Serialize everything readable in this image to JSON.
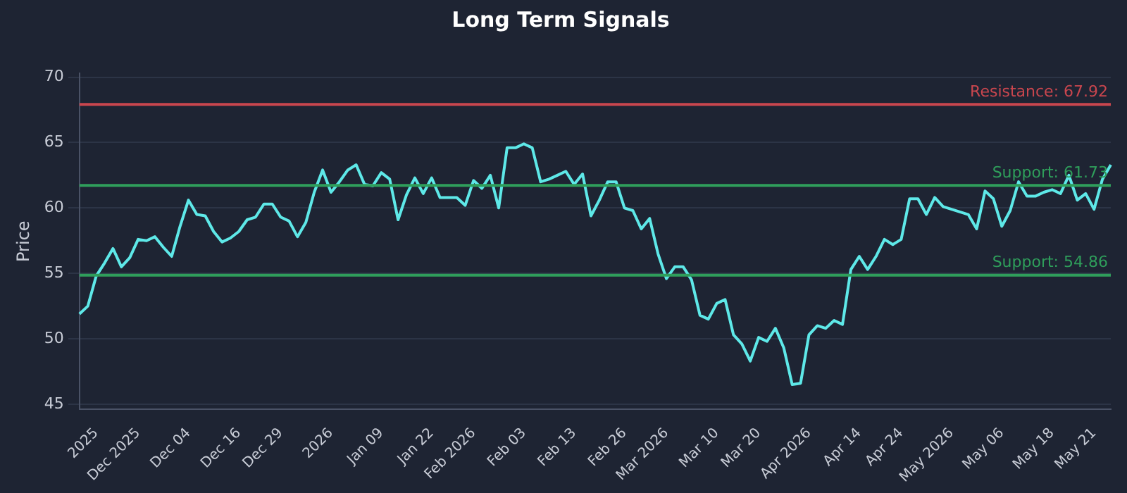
{
  "chart_data": {
    "type": "line",
    "title": "Long Term Signals",
    "ylabel": "Price",
    "categories": [
      null,
      null,
      "2025",
      null,
      null,
      null,
      null,
      "Dec 2025",
      null,
      null,
      null,
      null,
      null,
      "Dec 04",
      null,
      null,
      null,
      null,
      null,
      "Dec 16",
      null,
      null,
      null,
      null,
      "Dec 29",
      null,
      null,
      null,
      null,
      null,
      "2026",
      null,
      null,
      null,
      null,
      null,
      "Jan 09",
      null,
      null,
      null,
      null,
      null,
      "Jan 22",
      null,
      null,
      null,
      null,
      "Feb 2026",
      null,
      null,
      null,
      null,
      null,
      "Feb 03",
      null,
      null,
      null,
      null,
      null,
      "Feb 13",
      null,
      null,
      null,
      null,
      null,
      "Feb 26",
      null,
      null,
      null,
      null,
      "Mar 2026",
      null,
      null,
      null,
      null,
      null,
      "Mar 10",
      null,
      null,
      null,
      null,
      "Mar 20",
      null,
      null,
      null,
      null,
      null,
      "Apr 2026",
      null,
      null,
      null,
      null,
      null,
      "Apr 14",
      null,
      null,
      null,
      null,
      "Apr 24",
      null,
      null,
      null,
      null,
      null,
      "May 2026",
      null,
      null,
      null,
      null,
      null,
      "May 06",
      null,
      null,
      null,
      null,
      null,
      "May 18",
      null,
      null,
      null,
      null,
      "May 21",
      null,
      null
    ],
    "series": [
      {
        "color": "#5ee8e8",
        "values": [
          51.9,
          52.5,
          54.8,
          55.8,
          56.9,
          55.5,
          56.2,
          57.6,
          57.5,
          57.8,
          57.0,
          56.3,
          58.6,
          60.6,
          59.5,
          59.4,
          58.2,
          57.4,
          57.7,
          58.2,
          59.1,
          59.3,
          60.3,
          60.3,
          59.3,
          59.0,
          57.8,
          58.9,
          61.2,
          62.9,
          61.2,
          62.0,
          62.9,
          63.3,
          61.8,
          61.7,
          62.7,
          62.2,
          59.1,
          61.0,
          62.3,
          61.1,
          62.3,
          60.8,
          60.8,
          60.8,
          60.2,
          62.1,
          61.5,
          62.5,
          60.0,
          64.6,
          64.6,
          64.9,
          64.6,
          62.0,
          62.2,
          62.5,
          62.8,
          61.8,
          62.6,
          59.4,
          60.6,
          62.0,
          62.0,
          60.0,
          59.8,
          58.4,
          59.2,
          56.5,
          54.6,
          55.5,
          55.5,
          54.5,
          51.8,
          51.5,
          52.7,
          53.0,
          50.3,
          49.6,
          48.3,
          50.1,
          49.8,
          50.8,
          49.3,
          46.5,
          46.6,
          50.3,
          51.0,
          50.8,
          51.4,
          51.1,
          55.3,
          56.3,
          55.3,
          56.3,
          57.6,
          57.2,
          57.6,
          60.7,
          60.7,
          59.5,
          60.8,
          60.1,
          59.9,
          59.7,
          59.5,
          58.4,
          61.3,
          60.7,
          58.6,
          59.8,
          62.0,
          60.9,
          60.9,
          61.2,
          61.4,
          61.1,
          62.5,
          60.6,
          61.1,
          59.9,
          62.2,
          63.3
        ]
      }
    ],
    "ylim": [
      44.6,
      70.3
    ],
    "yticks": [
      45,
      50,
      55,
      60,
      65,
      70
    ],
    "grid": "y",
    "marker": "none",
    "line_style": "solid",
    "ref_lines": [
      {
        "axis": "y",
        "value": 67.92,
        "label": "Resistance: 67.92",
        "color": "#c9464e"
      },
      {
        "axis": "y",
        "value": 61.73,
        "label": "Support: 61.73",
        "color": "#2f9e5b"
      },
      {
        "axis": "y",
        "value": 54.86,
        "label": "Support: 54.86",
        "color": "#2f9e5b"
      }
    ]
  }
}
